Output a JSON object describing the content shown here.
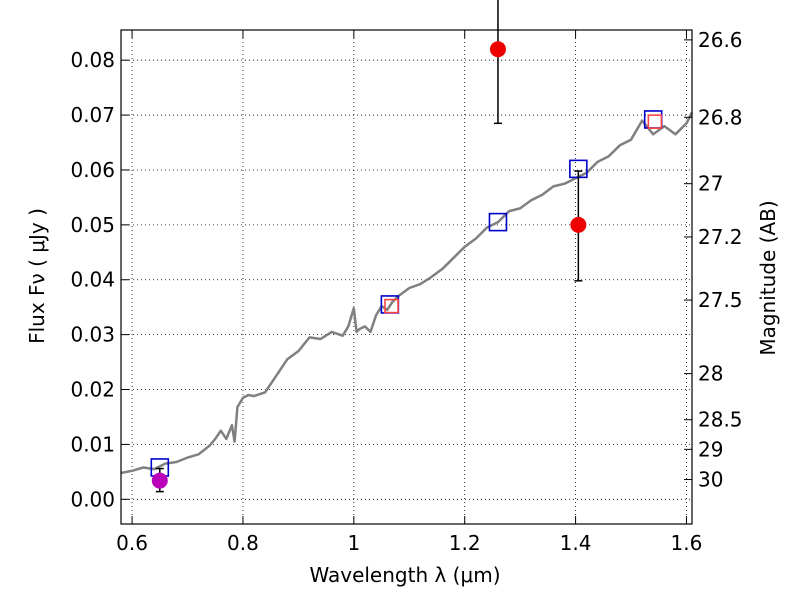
{
  "chart_data": {
    "type": "scatter",
    "xlabel": "Wavelength  λ (μm)",
    "ylabel": "Flux  Fν  ( μJy )",
    "y2label": "Magnitude (AB)",
    "xlim": [
      0.58,
      1.61
    ],
    "ylim": [
      -0.0045,
      0.0855
    ],
    "grid": true,
    "xticks": [
      0.6,
      0.8,
      1.0,
      1.2,
      1.4,
      1.6
    ],
    "xtick_labels": [
      "0.6",
      "0.8",
      "1",
      "1.2",
      "1.4",
      "1.6"
    ],
    "yticks": [
      0.0,
      0.01,
      0.02,
      0.03,
      0.04,
      0.05,
      0.06,
      0.07,
      0.08
    ],
    "ytick_labels": [
      "0.00",
      "0.01",
      "0.02",
      "0.03",
      "0.04",
      "0.05",
      "0.06",
      "0.07",
      "0.08"
    ],
    "y2ticks": [
      {
        "label": "26.6",
        "flux": 0.0837
      },
      {
        "label": "26.8",
        "flux": 0.0696
      },
      {
        "label": "27",
        "flux": 0.0575
      },
      {
        "label": "27.2",
        "flux": 0.0478
      },
      {
        "label": "27.5",
        "flux": 0.0363
      },
      {
        "label": "28",
        "flux": 0.0229
      },
      {
        "label": "28.5",
        "flux": 0.0145
      },
      {
        "label": "29",
        "flux": 0.0091
      },
      {
        "label": "30",
        "flux": 0.0036
      }
    ],
    "model_spectrum": {
      "color": "#808080",
      "x": [
        0.58,
        0.6,
        0.62,
        0.64,
        0.66,
        0.68,
        0.7,
        0.72,
        0.74,
        0.75,
        0.76,
        0.77,
        0.78,
        0.785,
        0.79,
        0.8,
        0.81,
        0.82,
        0.84,
        0.86,
        0.88,
        0.9,
        0.92,
        0.94,
        0.96,
        0.98,
        0.99,
        1.0,
        1.005,
        1.01,
        1.02,
        1.03,
        1.04,
        1.05,
        1.06,
        1.07,
        1.08,
        1.1,
        1.12,
        1.14,
        1.16,
        1.18,
        1.2,
        1.22,
        1.24,
        1.26,
        1.28,
        1.3,
        1.32,
        1.34,
        1.36,
        1.38,
        1.4,
        1.42,
        1.44,
        1.46,
        1.48,
        1.5,
        1.52,
        1.54,
        1.56,
        1.58,
        1.6,
        1.61
      ],
      "y": [
        0.0048,
        0.0052,
        0.0058,
        0.0055,
        0.0065,
        0.0068,
        0.0076,
        0.0082,
        0.0098,
        0.011,
        0.0125,
        0.011,
        0.0135,
        0.0105,
        0.0168,
        0.0185,
        0.019,
        0.0188,
        0.0195,
        0.0225,
        0.0255,
        0.027,
        0.0295,
        0.0292,
        0.0305,
        0.0298,
        0.0315,
        0.0348,
        0.0305,
        0.031,
        0.0315,
        0.0305,
        0.0335,
        0.0352,
        0.0345,
        0.036,
        0.037,
        0.0385,
        0.0392,
        0.0405,
        0.042,
        0.044,
        0.046,
        0.0475,
        0.0495,
        0.0505,
        0.0525,
        0.053,
        0.0545,
        0.0555,
        0.057,
        0.0575,
        0.0585,
        0.0595,
        0.0615,
        0.0625,
        0.0645,
        0.0655,
        0.069,
        0.0665,
        0.068,
        0.0665,
        0.0685,
        0.0705
      ]
    },
    "series": [
      {
        "name": "",
        "marker": "open-square",
        "color": "#0000cc",
        "x": [
          0.65,
          1.065,
          1.26,
          1.405,
          1.54
        ],
        "y": [
          0.0058,
          0.0355,
          0.0505,
          0.0602,
          0.0692
        ]
      },
      {
        "name": "",
        "marker": "open-square",
        "color": "#ff4444",
        "x": [
          1.068,
          1.543
        ],
        "y": [
          0.0352,
          0.0688
        ]
      },
      {
        "name": "",
        "marker": "filled-circle",
        "color": "#ee0000",
        "x": [
          1.26,
          1.405
        ],
        "y": [
          0.082,
          0.05
        ],
        "yerr_low": [
          0.0135,
          0.0102
        ],
        "yerr_high": [
          0.0125,
          0.0098
        ]
      },
      {
        "name": "",
        "marker": "filled-circle",
        "color": "#bb00bb",
        "x": [
          0.65
        ],
        "y": [
          0.0034
        ],
        "yerr_low": [
          0.002
        ],
        "yerr_high": [
          0.0022
        ]
      }
    ]
  }
}
